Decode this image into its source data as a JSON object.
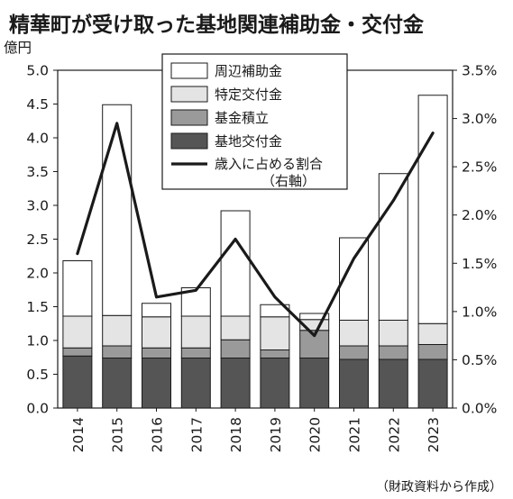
{
  "chart_data": {
    "type": "bar",
    "title": "精華町が受け取った基地関連補助金・交付金",
    "y_unit_label": "億円",
    "categories": [
      "2014",
      "2015",
      "2016",
      "2017",
      "2018",
      "2019",
      "2020",
      "2021",
      "2022",
      "2023"
    ],
    "stack_order": [
      "基地交付金",
      "基金積立",
      "特定交付金",
      "周辺補助金"
    ],
    "series": [
      {
        "name": "基地交付金",
        "color": "#555555",
        "values": [
          0.77,
          0.74,
          0.74,
          0.74,
          0.74,
          0.74,
          0.74,
          0.72,
          0.72,
          0.72
        ]
      },
      {
        "name": "基金積立",
        "color": "#9a9a9a",
        "values": [
          0.12,
          0.18,
          0.15,
          0.15,
          0.27,
          0.12,
          0.41,
          0.2,
          0.2,
          0.22
        ]
      },
      {
        "name": "特定交付金",
        "color": "#e4e4e4",
        "values": [
          0.47,
          0.45,
          0.46,
          0.47,
          0.35,
          0.49,
          0.16,
          0.38,
          0.38,
          0.31
        ]
      },
      {
        "name": "周辺補助金",
        "color": "#ffffff",
        "values": [
          0.82,
          3.12,
          0.2,
          0.42,
          1.56,
          0.18,
          0.09,
          1.22,
          2.17,
          3.38
        ]
      },
      {
        "name": "歳入に占める割合",
        "type": "line",
        "axis": "right",
        "color": "#1a1a1a",
        "values": [
          1.6,
          2.95,
          1.15,
          1.22,
          1.75,
          1.15,
          0.75,
          1.55,
          2.15,
          2.85
        ]
      }
    ],
    "legend": {
      "placement": "top-center",
      "items": [
        "周辺補助金",
        "特定交付金",
        "基金積立",
        "基地交付金"
      ],
      "line_label": "歳入に占める割合",
      "line_sublabel": "（右軸）"
    },
    "y_left": {
      "ylim": [
        0,
        5.0
      ],
      "ticks": [
        "0.0",
        "0.5",
        "1.0",
        "1.5",
        "2.0",
        "2.5",
        "3.0",
        "3.5",
        "4.0",
        "4.5",
        "5.0"
      ]
    },
    "y_right": {
      "ylim": [
        0,
        3.5
      ],
      "ticks": [
        "0.0%",
        "0.5%",
        "1.0%",
        "1.5%",
        "2.0%",
        "2.5%",
        "3.0%",
        "3.5%"
      ]
    },
    "grid": false,
    "source": "（財政資料から作成）"
  }
}
